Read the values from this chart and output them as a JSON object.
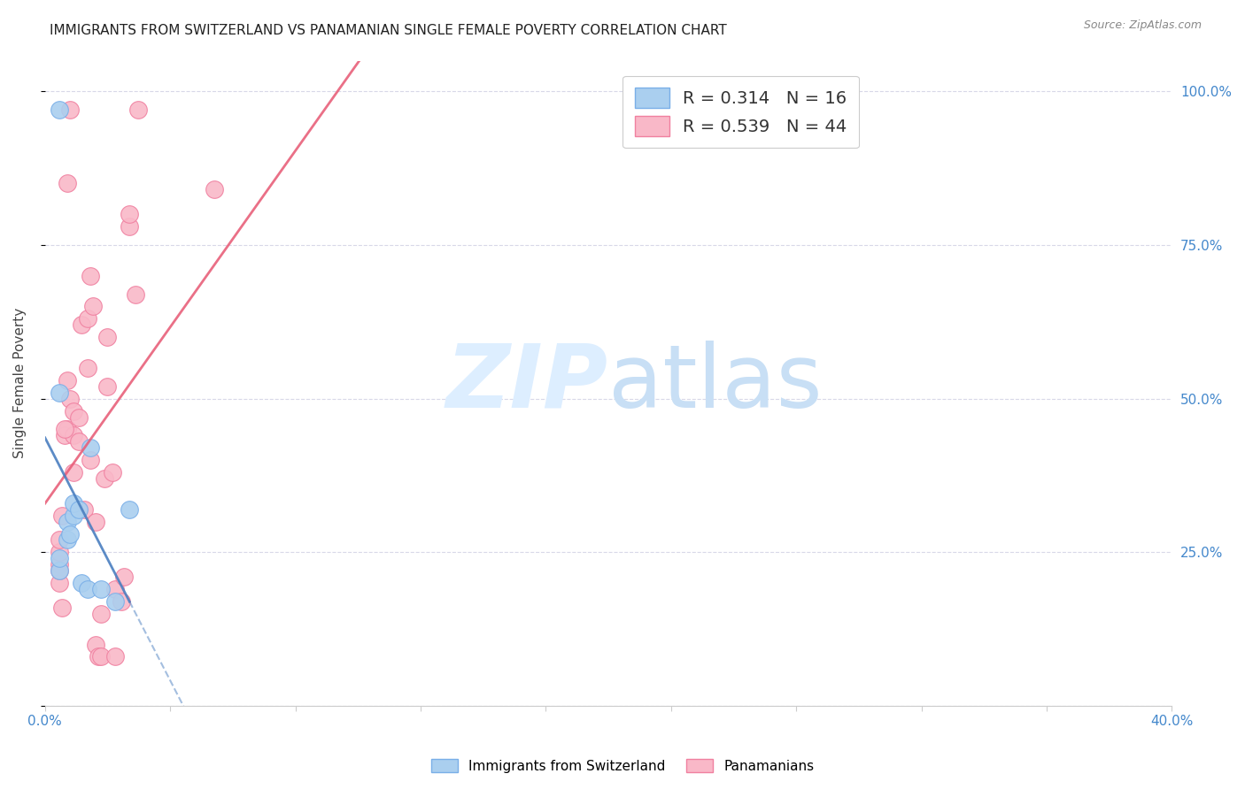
{
  "title": "IMMIGRANTS FROM SWITZERLAND VS PANAMANIAN SINGLE FEMALE POVERTY CORRELATION CHART",
  "source": "Source: ZipAtlas.com",
  "ylabel": "Single Female Poverty",
  "xlim": [
    0.0,
    0.4
  ],
  "ylim": [
    0.0,
    1.05
  ],
  "xticks": [
    0.0,
    0.04444,
    0.08889,
    0.13333,
    0.17778,
    0.22222,
    0.26667,
    0.31111,
    0.35556,
    0.4
  ],
  "yticks": [
    0.0,
    0.25,
    0.5,
    0.75,
    1.0
  ],
  "swiss_x": [
    0.005,
    0.005,
    0.005,
    0.008,
    0.008,
    0.009,
    0.01,
    0.01,
    0.012,
    0.013,
    0.015,
    0.016,
    0.02,
    0.025,
    0.03,
    0.005
  ],
  "swiss_y": [
    0.97,
    0.22,
    0.24,
    0.3,
    0.27,
    0.28,
    0.31,
    0.33,
    0.32,
    0.2,
    0.19,
    0.42,
    0.19,
    0.17,
    0.32,
    0.51
  ],
  "panam_x": [
    0.005,
    0.005,
    0.005,
    0.005,
    0.005,
    0.007,
    0.008,
    0.008,
    0.009,
    0.01,
    0.01,
    0.01,
    0.012,
    0.012,
    0.013,
    0.015,
    0.015,
    0.016,
    0.016,
    0.017,
    0.018,
    0.019,
    0.02,
    0.02,
    0.021,
    0.022,
    0.024,
    0.025,
    0.025,
    0.027,
    0.03,
    0.03,
    0.032,
    0.033,
    0.06,
    0.009,
    0.006,
    0.007,
    0.008,
    0.014,
    0.028,
    0.018,
    0.022,
    0.006
  ],
  "panam_y": [
    0.2,
    0.23,
    0.25,
    0.27,
    0.22,
    0.44,
    0.45,
    0.53,
    0.5,
    0.44,
    0.48,
    0.38,
    0.47,
    0.43,
    0.62,
    0.63,
    0.55,
    0.4,
    0.7,
    0.65,
    0.1,
    0.08,
    0.08,
    0.15,
    0.37,
    0.6,
    0.38,
    0.19,
    0.08,
    0.17,
    0.78,
    0.8,
    0.67,
    0.97,
    0.84,
    0.97,
    0.31,
    0.45,
    0.85,
    0.32,
    0.21,
    0.3,
    0.52,
    0.16
  ],
  "swiss_color": "#aacfef",
  "swiss_edge_color": "#7aafe8",
  "panam_color": "#f9b8c8",
  "panam_edge_color": "#f080a0",
  "swiss_trend_color": "#4a7fc0",
  "panam_trend_color": "#e8607a",
  "background_color": "#ffffff",
  "grid_color": "#d8d8e8",
  "watermark_zip": "ZIP",
  "watermark_atlas": "atlas",
  "watermark_color": "#ddeeff",
  "title_fontsize": 11,
  "tick_label_color": "#4488cc",
  "ylabel_color": "#444444"
}
